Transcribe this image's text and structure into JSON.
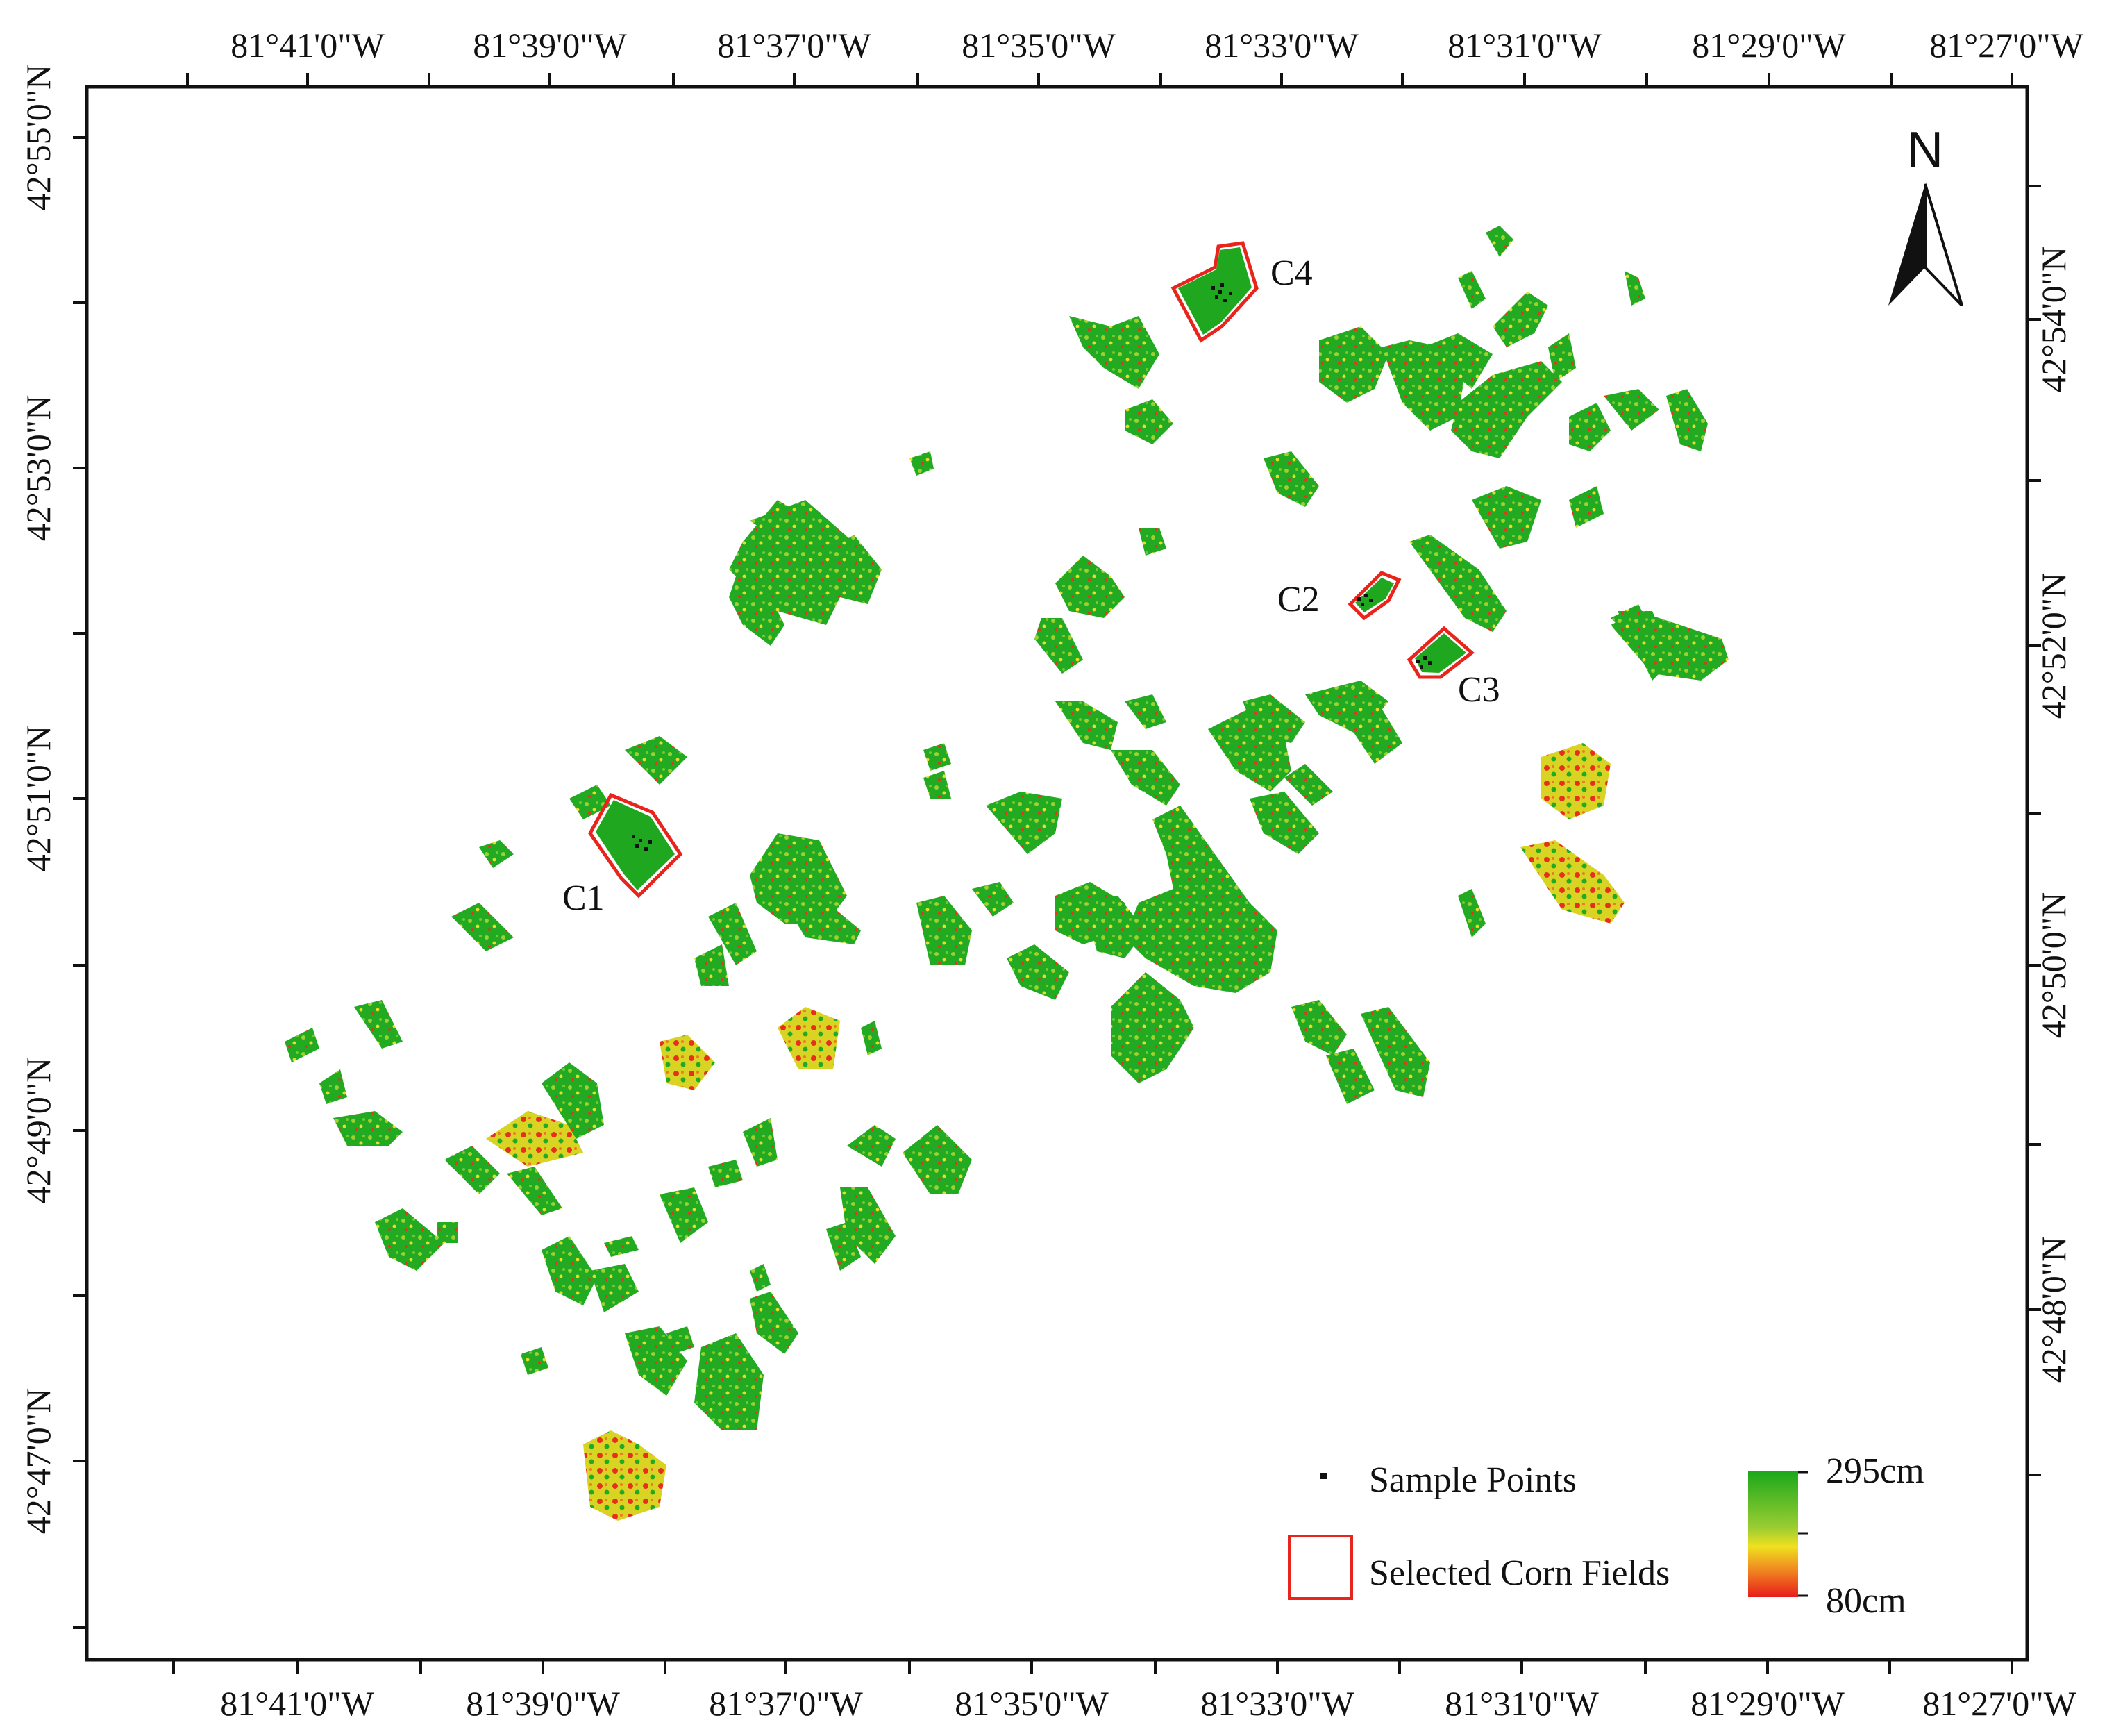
{
  "map": {
    "top_longitude_labels": [
      "81°41'0\"W",
      "81°39'0\"W",
      "81°37'0\"W",
      "81°35'0\"W",
      "81°33'0\"W",
      "81°31'0\"W",
      "81°29'0\"W",
      "81°27'0\"W"
    ],
    "bottom_longitude_labels": [
      "81°41'0\"W",
      "81°39'0\"W",
      "81°37'0\"W",
      "81°35'0\"W",
      "81°33'0\"W",
      "81°31'0\"W",
      "81°29'0\"W",
      "81°27'0\"W"
    ],
    "left_latitude_labels": [
      "42°55'0\"N",
      "42°53'0\"N",
      "42°51'0\"N",
      "42°49'0\"N",
      "42°47'0\"N"
    ],
    "right_latitude_labels": [
      "42°54'0\"N",
      "42°52'0\"N",
      "42°50'0\"N",
      "42°48'0\"N"
    ],
    "north_arrow": "N",
    "field_labels": {
      "c1": "C1",
      "c2": "C2",
      "c3": "C3",
      "c4": "C4"
    },
    "legend": {
      "sample_points": "Sample Points",
      "selected_fields": "Selected Corn Fields",
      "color_max": "295cm",
      "color_min": "80cm"
    },
    "colors": {
      "green": "#1fa81f",
      "yellow": "#e8e020",
      "red": "#e8241c",
      "outline": "#e8241c"
    }
  }
}
